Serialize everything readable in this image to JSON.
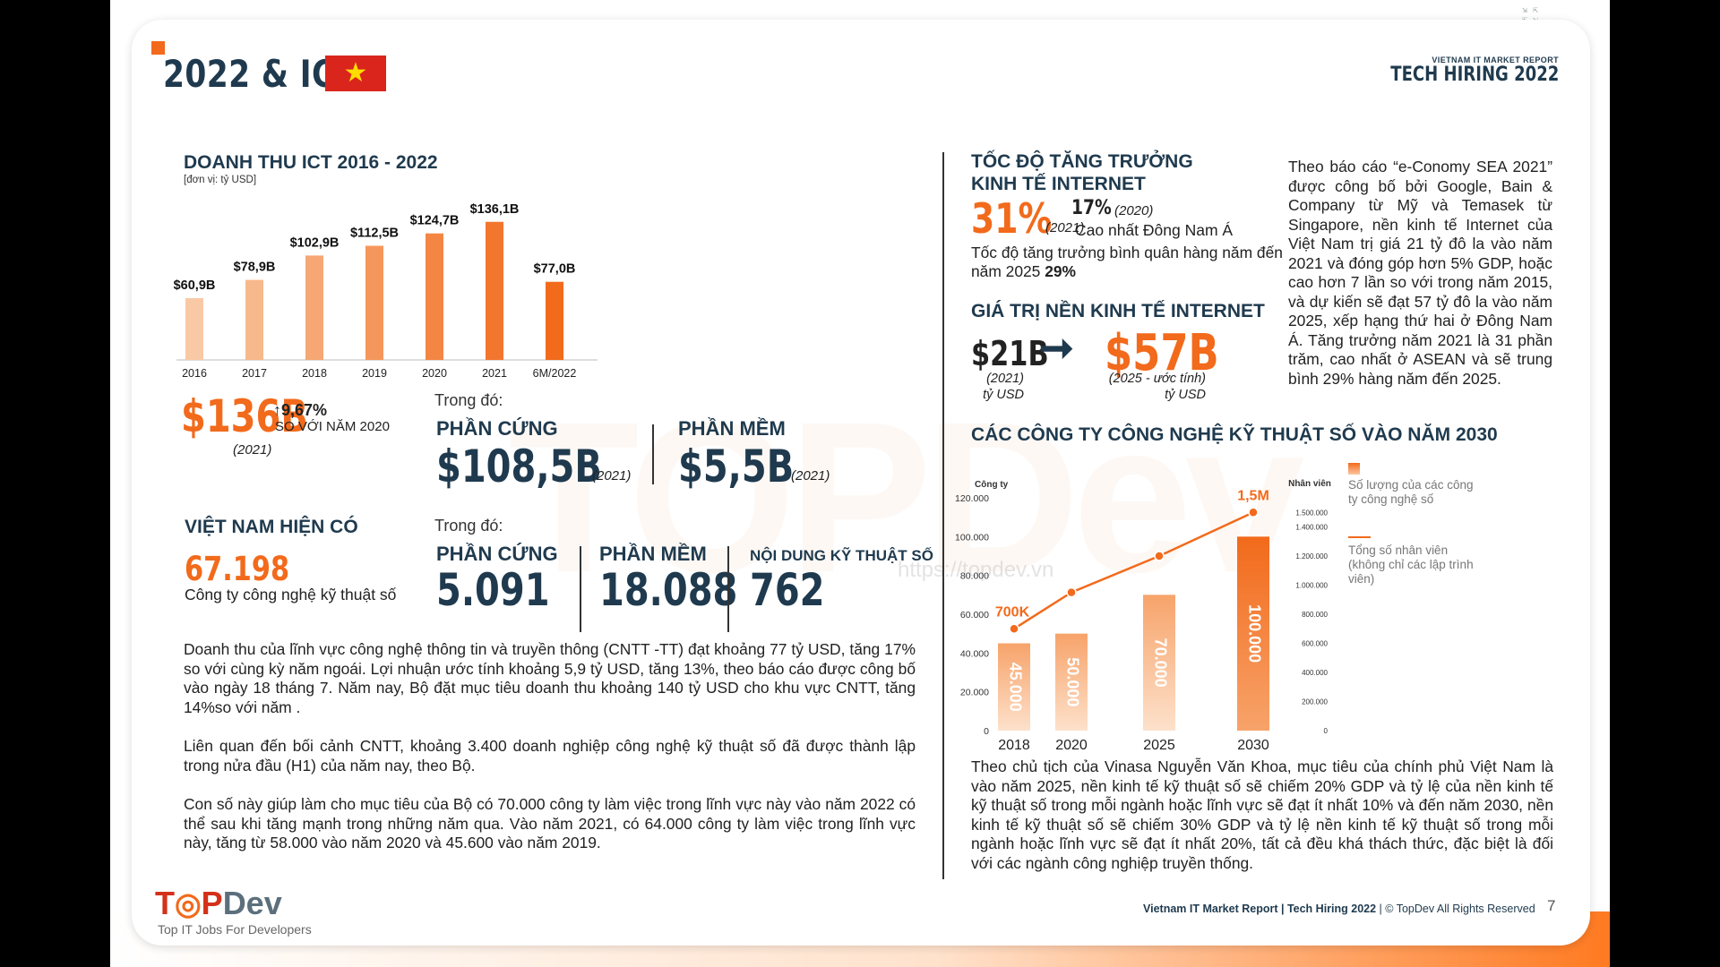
{
  "header": {
    "title": "2022 & ICT",
    "report_top": "VIETNAM IT MARKET REPORT",
    "report_bottom": "TECH HIRING 2022"
  },
  "watermark": {
    "logo": "TOPDev",
    "url": "https://topdev.vn"
  },
  "ict": {
    "title": "DOANH THU ICT 2016 - 2022",
    "unit": "[đơn vị: tỷ USD]",
    "big_value": "$136B",
    "big_year": "(2021)",
    "growth": "9,67%",
    "growth_label": "SO VỚI NĂM 2020"
  },
  "breakdown": {
    "intro": "Trong đó:",
    "hardware_label": "PHẦN CỨNG",
    "hardware_value": "$108,5B",
    "hardware_year": "(2021)",
    "software_label": "PHẦN MỀM",
    "software_value": "$5,5B",
    "software_year": "(2021)"
  },
  "companies": {
    "title": "VIỆT NAM HIỆN CÓ",
    "total": "67.198",
    "total_label": "Công ty công nghệ kỹ thuật số",
    "intro": "Trong đó:",
    "hardware_label": "PHẦN CỨNG",
    "hardware_value": "5.091",
    "software_label": "PHẦN MỀM",
    "software_value": "18.088",
    "content_label": "NỘI DUNG KỸ THUẬT SỐ",
    "content_value": "762"
  },
  "internet": {
    "growth_title": "TỐC ĐỘ TĂNG TRƯỞNG KINH TẾ INTERNET",
    "growth_2021": "31%",
    "growth_2021_year": "(2021)",
    "growth_2020": "17%",
    "growth_2020_year": "(2020)",
    "highest_label": "Cao nhất Đông Nam Á",
    "cagr_text": "Tốc độ tăng trưởng bình quân hàng năm đến năm 2025",
    "cagr_value": "29%",
    "value_title": "GIÁ TRỊ NỀN KINH TẾ INTERNET",
    "value_2021": "$21B",
    "value_2021_year": "(2021)",
    "value_2025": "$57B",
    "value_2025_year": "(2025 - ước tính)",
    "value_unit": "tỷ USD"
  },
  "chart2": {
    "title": "CÁC CÔNG TY CÔNG NGHỆ KỸ THUẬT SỐ VÀO NĂM 2030",
    "legend_companies": "Số lượng của các công ty công nghệ số",
    "legend_employees": "Tổng số nhân viên (không chỉ các lập trình viên)"
  },
  "paragraphs": {
    "p1": "Doanh thu của lĩnh vực công nghệ thông tin và truyền thông (CNTT -TT) đạt khoảng 77 tỷ USD, tăng 17% so với cùng kỳ năm ngoái. Lợi nhuận ước tính khoảng 5,9 tỷ USD, tăng 13%, theo báo cáo được công bố vào ngày 18 tháng 7. Năm nay, Bộ đặt mục tiêu doanh thu khoảng 140 tỷ USD cho khu vực CNTT, tăng 14%so với năm .",
    "p2": "Liên quan đến bối cảnh CNTT, khoảng 3.400 doanh nghiệp công nghệ kỹ thuật số đã được thành lập trong nửa đầu (H1) của năm nay, theo Bộ.",
    "p3": "Con số này giúp làm cho mục tiêu của Bộ có 70.000 công ty làm việc trong lĩnh vực này vào năm 2022 có thể sau khi tăng mạnh trong những năm qua. Vào năm 2021, có 64.000 công ty làm việc trong lĩnh vực này, tăng từ 58.000 vào năm 2020 và 45.600 vào năm 2019.",
    "economy": "Theo báo cáo “e-Conomy SEA 2021” được công bố bởi Google, Bain & Company từ Mỹ và Temasek từ Singapore, nền kinh tế Internet của Việt Nam trị giá 21 tỷ đô la vào năm 2021 và đóng góp hơn 5% GDP, hoặc cao hơn 7 lần so với trong năm 2015, và dự kiến sẽ đạt 57 tỷ đô la vào năm 2025, xếp hạng thứ hai ở Đông Nam Á. Tăng trưởng năm 2021 là 31 phần trăm, cao nhất ở ASEAN và sẽ trung bình 29% hàng năm đến 2025.",
    "vinasa": "Theo chủ tịch của Vinasa Nguyễn Văn Khoa, mục tiêu của chính phủ Việt Nam là vào năm 2025, nền kinh tế kỹ thuật số sẽ chiếm 20% GDP và tỷ lệ của nền kinh tế kỹ thuật số trong mỗi ngành hoặc lĩnh vực sẽ đạt ít nhất 10% và đến năm 2030, nền kinh tế kỹ thuật số sẽ chiếm 30% GDP và tỷ lệ nền kinh tế kỹ thuật số trong mỗi ngành hoặc lĩnh vực sẽ đạt ít nhất 20%, tất cả đều khá thách thức, đặc biệt là đối với các ngành công nghiệp truyền thống."
  },
  "footer": {
    "logo_a": "T",
    "logo_b": "P",
    "logo_c": "Dev",
    "tagline": "Top IT Jobs For Developers",
    "report": "Vietnam IT Market Report | Tech Hiring 2022",
    "copyright": "| © TopDev All Rights Reserved",
    "page": "7"
  },
  "colors": {
    "navy": "#1f3a4e",
    "orange": "#f26a1b",
    "light_orange": "#f9c9a6"
  },
  "chart_data": [
    {
      "type": "bar",
      "title": "DOANH THU ICT 2016 - 2022",
      "unit": "[đơn vị: tỷ USD]",
      "categories": [
        "2016",
        "2017",
        "2018",
        "2019",
        "2020",
        "2021",
        "6M/2022"
      ],
      "values": [
        60.9,
        78.9,
        102.9,
        112.5,
        124.7,
        136.1,
        77.0
      ],
      "labels": [
        "$60,9B",
        "$78,9B",
        "$102,9B",
        "$112,5B",
        "$124,7B",
        "$136,1B",
        "$77,0B"
      ],
      "ylim": [
        0,
        150
      ],
      "grid": false
    },
    {
      "type": "bar",
      "title": "CÁC CÔNG TY CÔNG NGHỆ KỸ THUẬT SỐ VÀO NĂM 2030",
      "categories": [
        "2018",
        "2020",
        "2025",
        "2030"
      ],
      "y_left_label": "Công ty",
      "y_right_label": "Nhân viên",
      "y_left_ticks": [
        "0",
        "20.000",
        "40.000",
        "60.000",
        "80.000",
        "100.000",
        "120.000"
      ],
      "y_right_ticks": [
        "0",
        "200.000",
        "400.000",
        "600.000",
        "800.000",
        "1.000.000",
        "1.200.000",
        "1.400.000",
        "1.500.000"
      ],
      "ylim_left": [
        0,
        120000
      ],
      "ylim_right": [
        0,
        1600000
      ],
      "series": [
        {
          "name": "Số lượng của các công ty công nghệ số",
          "type": "bar",
          "values": [
            45000,
            50000,
            70000,
            100000
          ],
          "labels": [
            "45.000",
            "50.000",
            "70.000",
            "100.000"
          ]
        },
        {
          "name": "Tổng số nhân viên (không chỉ các lập trình viên)",
          "type": "line",
          "values": [
            700000,
            950000,
            1200000,
            1500000
          ],
          "point_labels": [
            "700K",
            "",
            "",
            "1,5M"
          ]
        }
      ],
      "legend": "right",
      "grid": false
    }
  ]
}
